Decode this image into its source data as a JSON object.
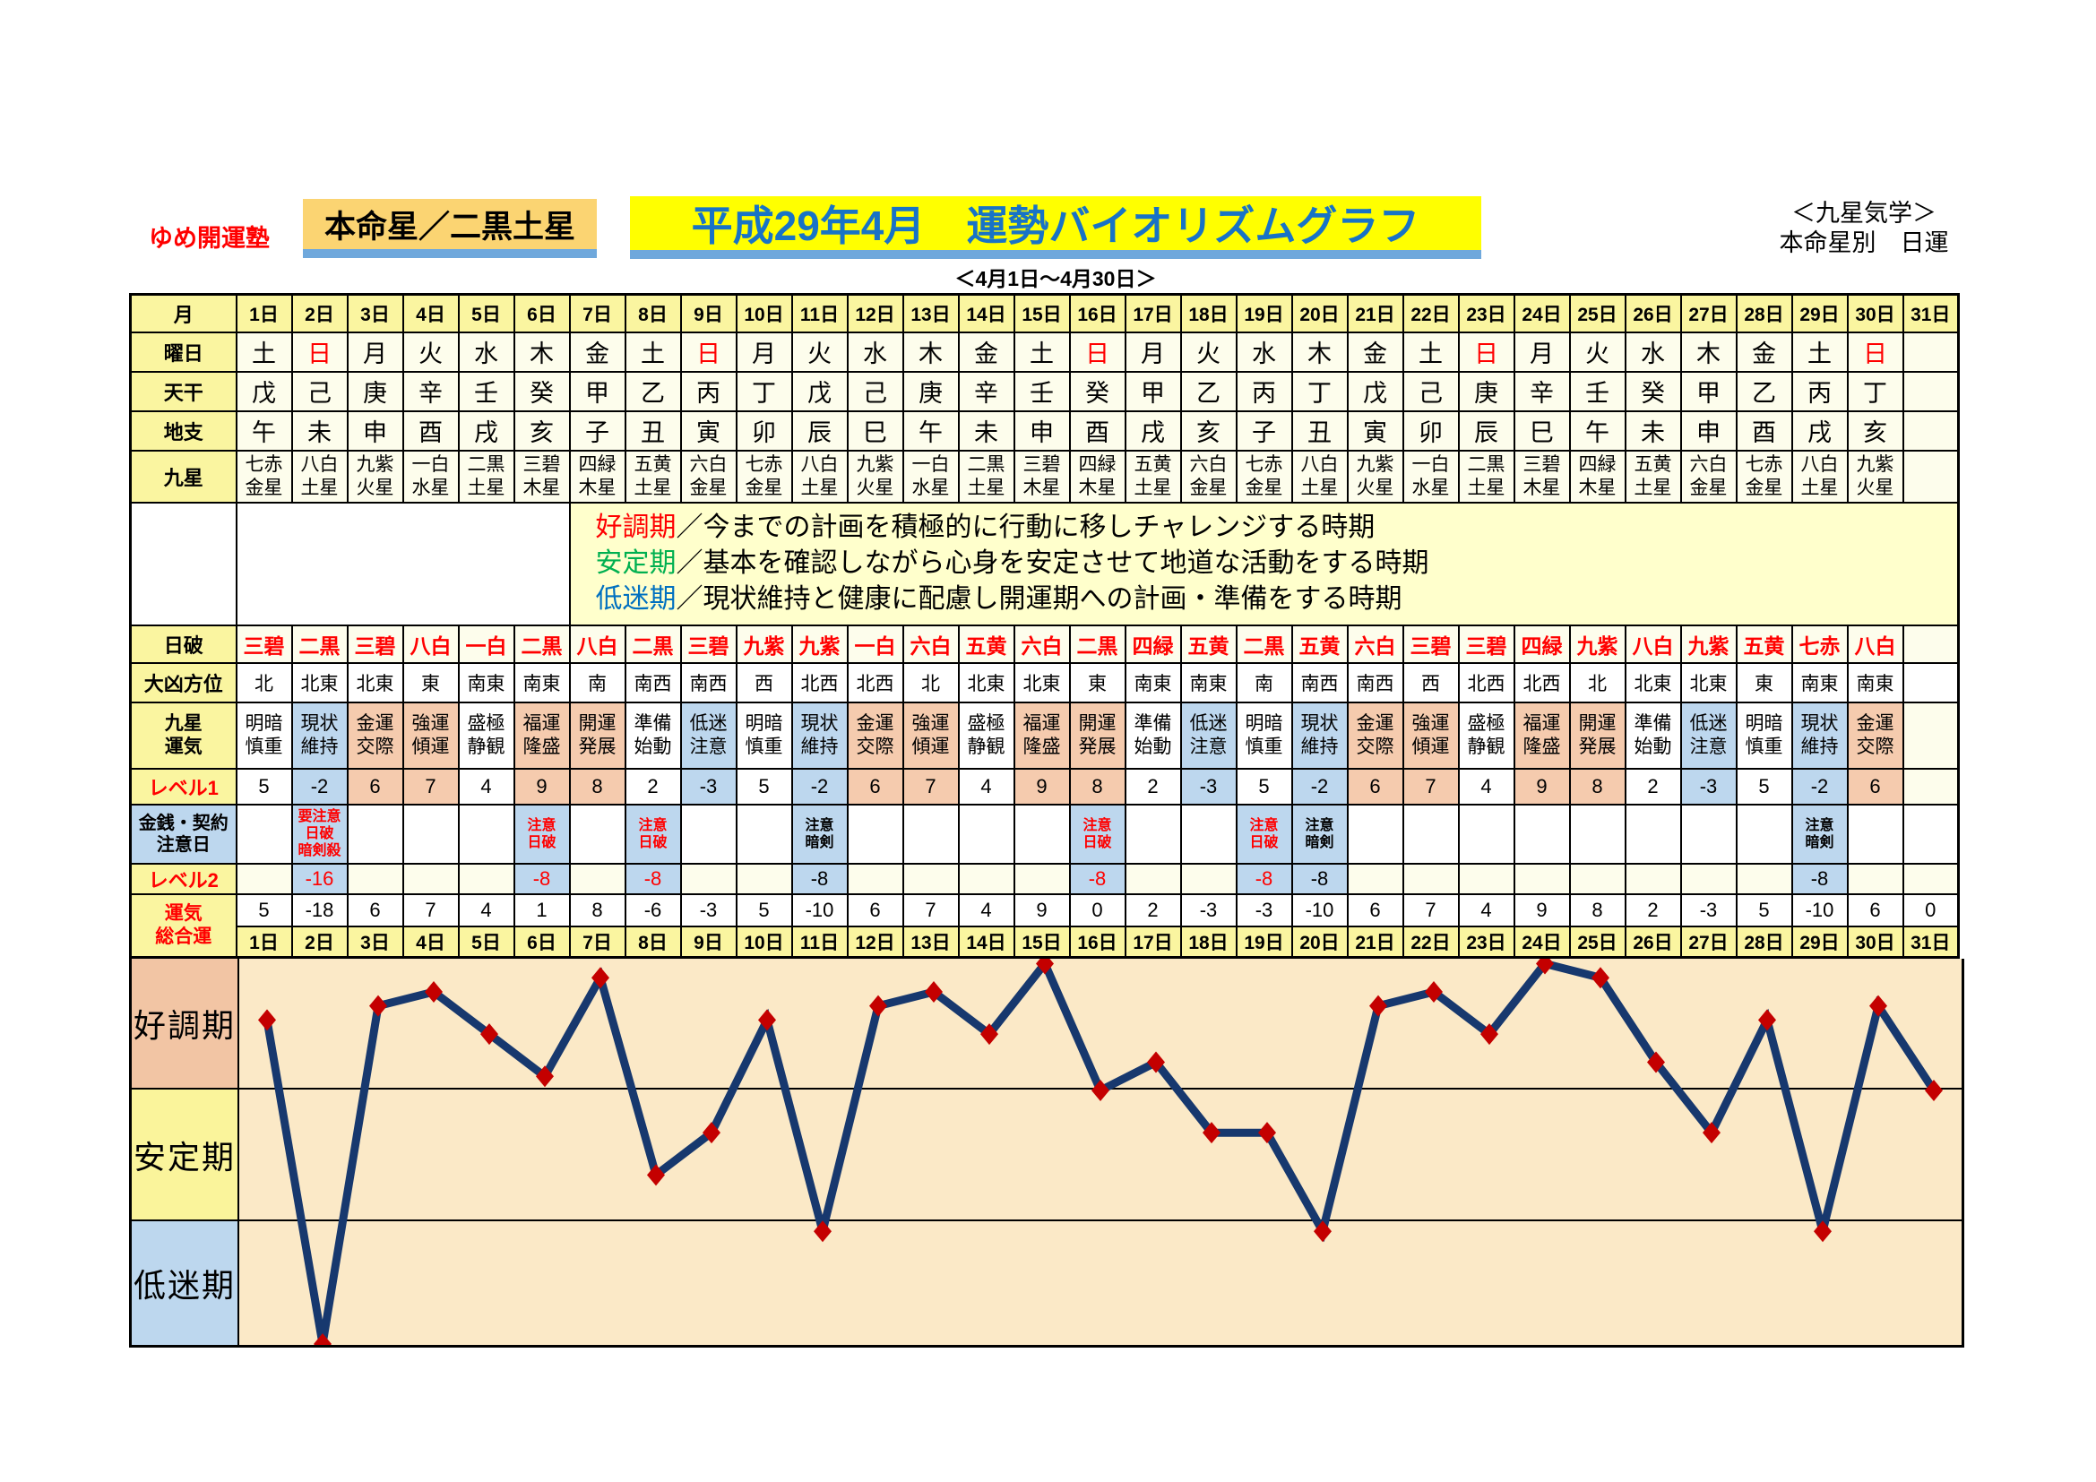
{
  "header": {
    "brand": "ゆめ開運塾",
    "honmei": "本命星／二黒土星",
    "title": "平成29年4月　運勢バイオリズムグラフ",
    "school_line1": "＜九星気学＞",
    "school_line2": "本命星別　日運",
    "subtitle": "＜4月1日～4月30日＞"
  },
  "legend": {
    "items": [
      {
        "term": "好調期",
        "color": "#FF0000",
        "desc": "／今までの計画を積極的に行動に移しチャレンジする時期"
      },
      {
        "term": "安定期",
        "color": "#00B050",
        "desc": "／基本を確認しながら心身を安定させて地道な活動をする時期"
      },
      {
        "term": "低迷期",
        "color": "#0070C0",
        "desc": "／現状維持と健康に配慮し開運期への計画・準備をする時期"
      }
    ]
  },
  "table": {
    "labels": {
      "month": "月",
      "weekday": "曜日",
      "tenkan": "天干",
      "chishi": "地支",
      "kyusei": "九星",
      "nippa": "日破",
      "daikyo": "大凶方位",
      "kyusei_unki": "九星\n運気",
      "level1": "レベル1",
      "kinsen": "金銭・契約\n注意日",
      "level2": "レベル2",
      "sogo": "運気\n総合運"
    },
    "days": [
      "1日",
      "2日",
      "3日",
      "4日",
      "5日",
      "6日",
      "7日",
      "8日",
      "9日",
      "10日",
      "11日",
      "12日",
      "13日",
      "14日",
      "15日",
      "16日",
      "17日",
      "18日",
      "19日",
      "20日",
      "21日",
      "22日",
      "23日",
      "24日",
      "25日",
      "26日",
      "27日",
      "28日",
      "29日",
      "30日",
      "31日"
    ],
    "weekdays": [
      "土",
      "日",
      "月",
      "火",
      "水",
      "木",
      "金",
      "土",
      "日",
      "月",
      "火",
      "水",
      "木",
      "金",
      "土",
      "日",
      "月",
      "火",
      "水",
      "木",
      "金",
      "土",
      "日",
      "月",
      "火",
      "水",
      "木",
      "金",
      "土",
      "日",
      ""
    ],
    "tenkan": [
      "戊",
      "己",
      "庚",
      "辛",
      "壬",
      "癸",
      "甲",
      "乙",
      "丙",
      "丁",
      "戊",
      "己",
      "庚",
      "辛",
      "壬",
      "癸",
      "甲",
      "乙",
      "丙",
      "丁",
      "戊",
      "己",
      "庚",
      "辛",
      "壬",
      "癸",
      "甲",
      "乙",
      "丙",
      "丁",
      ""
    ],
    "chishi": [
      "午",
      "未",
      "申",
      "酉",
      "戌",
      "亥",
      "子",
      "丑",
      "寅",
      "卯",
      "辰",
      "巳",
      "午",
      "未",
      "申",
      "酉",
      "戌",
      "亥",
      "子",
      "丑",
      "寅",
      "卯",
      "辰",
      "巳",
      "午",
      "未",
      "申",
      "酉",
      "戌",
      "亥",
      ""
    ],
    "kyusei": [
      "七赤\n金星",
      "八白\n土星",
      "九紫\n火星",
      "一白\n水星",
      "二黒\n土星",
      "三碧\n木星",
      "四緑\n木星",
      "五黄\n土星",
      "六白\n金星",
      "七赤\n金星",
      "八白\n土星",
      "九紫\n火星",
      "一白\n水星",
      "二黒\n土星",
      "三碧\n木星",
      "四緑\n木星",
      "五黄\n土星",
      "六白\n金星",
      "七赤\n金星",
      "八白\n土星",
      "九紫\n火星",
      "一白\n水星",
      "二黒\n土星",
      "三碧\n木星",
      "四緑\n木星",
      "五黄\n土星",
      "六白\n金星",
      "七赤\n金星",
      "八白\n土星",
      "九紫\n火星",
      ""
    ],
    "nippa": [
      "三碧",
      "二黒",
      "三碧",
      "八白",
      "一白",
      "二黒",
      "八白",
      "二黒",
      "三碧",
      "九紫",
      "九紫",
      "一白",
      "六白",
      "五黄",
      "六白",
      "二黒",
      "四緑",
      "五黄",
      "二黒",
      "五黄",
      "六白",
      "三碧",
      "三碧",
      "四緑",
      "九紫",
      "八白",
      "九紫",
      "五黄",
      "七赤",
      "八白",
      ""
    ],
    "daikyo": [
      "北",
      "北東",
      "北東",
      "東",
      "南東",
      "南東",
      "南",
      "南西",
      "南西",
      "西",
      "北西",
      "北西",
      "北",
      "北東",
      "北東",
      "東",
      "南東",
      "南東",
      "南",
      "南西",
      "南西",
      "西",
      "北西",
      "北西",
      "北",
      "北東",
      "北東",
      "東",
      "南東",
      "南東",
      ""
    ],
    "unki": [
      "明暗\n慎重",
      "現状\n維持",
      "金運\n交際",
      "強運\n傾運",
      "盛極\n静観",
      "福運\n隆盛",
      "開運\n発展",
      "準備\n始動",
      "低迷\n注意",
      "明暗\n慎重",
      "現状\n維持",
      "金運\n交際",
      "強運\n傾運",
      "盛極\n静観",
      "福運\n隆盛",
      "開運\n発展",
      "準備\n始動",
      "低迷\n注意",
      "明暗\n慎重",
      "現状\n維持",
      "金運\n交際",
      "強運\n傾運",
      "盛極\n静観",
      "福運\n隆盛",
      "開運\n発展",
      "準備\n始動",
      "低迷\n注意",
      "明暗\n慎重",
      "現状\n維持",
      "金運\n交際",
      ""
    ],
    "unki_bg": [
      "w",
      "b",
      "s",
      "s",
      "w",
      "s",
      "s",
      "w",
      "b",
      "w",
      "b",
      "s",
      "s",
      "w",
      "s",
      "s",
      "w",
      "b",
      "w",
      "b",
      "s",
      "s",
      "w",
      "s",
      "s",
      "w",
      "b",
      "w",
      "b",
      "s",
      ""
    ],
    "level1": [
      "5",
      "-2",
      "6",
      "7",
      "4",
      "9",
      "8",
      "2",
      "-3",
      "5",
      "-2",
      "6",
      "7",
      "4",
      "9",
      "8",
      "2",
      "-3",
      "5",
      "-2",
      "6",
      "7",
      "4",
      "9",
      "8",
      "2",
      "-3",
      "5",
      "-2",
      "6",
      ""
    ],
    "caution": [
      null,
      {
        "text": "要注意\n日破\n暗剣殺",
        "color": "red"
      },
      null,
      null,
      null,
      {
        "text": "注意\n日破",
        "color": "red"
      },
      null,
      {
        "text": "注意\n日破",
        "color": "red"
      },
      null,
      null,
      {
        "text": "注意\n暗剣",
        "color": "black"
      },
      null,
      null,
      null,
      null,
      {
        "text": "注意\n日破",
        "color": "red"
      },
      null,
      null,
      {
        "text": "注意\n日破",
        "color": "red"
      },
      {
        "text": "注意\n暗剣",
        "color": "black"
      },
      null,
      null,
      null,
      null,
      null,
      null,
      null,
      null,
      {
        "text": "注意\n暗剣",
        "color": "black"
      },
      null,
      null
    ],
    "level2": [
      null,
      {
        "v": "-16",
        "color": "red"
      },
      null,
      null,
      null,
      {
        "v": "-8",
        "color": "red"
      },
      null,
      {
        "v": "-8",
        "color": "red"
      },
      null,
      null,
      {
        "v": "-8",
        "color": "black"
      },
      null,
      null,
      null,
      null,
      {
        "v": "-8",
        "color": "red"
      },
      null,
      null,
      {
        "v": "-8",
        "color": "red"
      },
      {
        "v": "-8",
        "color": "black"
      },
      null,
      null,
      null,
      null,
      null,
      null,
      null,
      null,
      {
        "v": "-8",
        "color": "black"
      },
      null,
      null
    ],
    "total": [
      "5",
      "-18",
      "6",
      "7",
      "4",
      "1",
      "8",
      "-6",
      "-3",
      "5",
      "-10",
      "6",
      "7",
      "4",
      "9",
      "0",
      "2",
      "-3",
      "-3",
      "-10",
      "6",
      "7",
      "4",
      "9",
      "8",
      "2",
      "-3",
      "5",
      "-10",
      "6",
      "0"
    ]
  },
  "chart_data": {
    "type": "line",
    "title": "運勢バイオリズム（運気総合運）",
    "x_days": [
      1,
      2,
      3,
      4,
      5,
      6,
      7,
      8,
      9,
      10,
      11,
      12,
      13,
      14,
      15,
      16,
      17,
      18,
      19,
      20,
      21,
      22,
      23,
      24,
      25,
      26,
      27,
      28,
      29,
      30,
      31
    ],
    "values": [
      5,
      -18,
      6,
      7,
      4,
      1,
      8,
      -6,
      -3,
      5,
      -10,
      6,
      7,
      4,
      9,
      0,
      2,
      -3,
      -3,
      -10,
      6,
      7,
      4,
      9,
      8,
      2,
      -3,
      5,
      -10,
      6,
      0
    ],
    "ylim": [
      -18,
      9
    ],
    "grid_values": [
      0,
      -9
    ],
    "bands": [
      {
        "label": "好調期",
        "range": [
          0,
          9
        ],
        "color": "#F2C5A4"
      },
      {
        "label": "安定期",
        "range": [
          -9,
          0
        ],
        "color": "#FAF49B"
      },
      {
        "label": "低迷期",
        "range": [
          -18,
          -9
        ],
        "color": "#BDD7EE"
      }
    ],
    "line_color": "#17386E",
    "marker_color": "#C40000",
    "plot_bg": "#FBE9C7"
  }
}
